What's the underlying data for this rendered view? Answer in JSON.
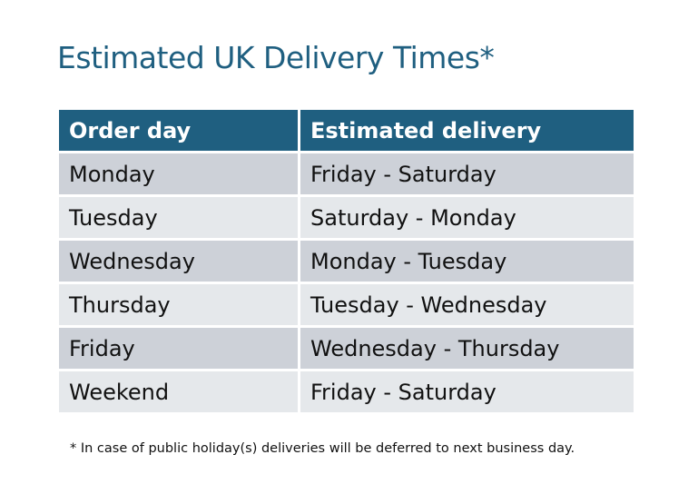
{
  "title": "Estimated UK Delivery Times*",
  "table": {
    "headers": [
      "Order day",
      "Estimated delivery"
    ],
    "rows": [
      [
        "Monday",
        "Friday - Saturday"
      ],
      [
        "Tuesday",
        "Saturday - Monday"
      ],
      [
        "Wednesday",
        "Monday - Tuesday"
      ],
      [
        "Thursday",
        "Tuesday - Wednesday"
      ],
      [
        "Friday",
        "Wednesday - Thursday"
      ],
      [
        "Weekend",
        "Friday - Saturday"
      ]
    ]
  },
  "footnote": "* In case of public holiday(s) deliveries will be deferred to next business day.",
  "colors": {
    "header": "#1f5f80",
    "row_dark": "#cdd1d8",
    "row_light": "#e5e8eb",
    "title": "#1f5f80"
  }
}
